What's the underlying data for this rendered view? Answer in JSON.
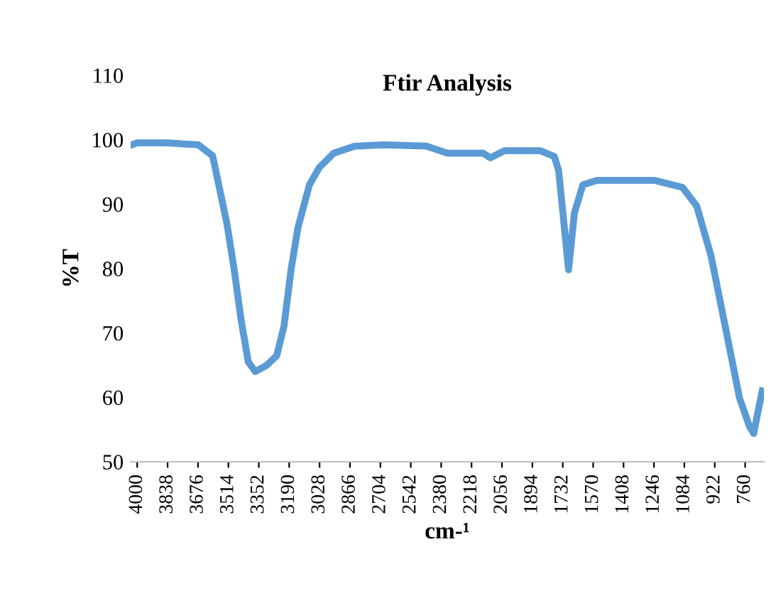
{
  "chart_data": {
    "type": "line",
    "title": "Ftir Analysis",
    "xlabel": "cm-¹",
    "ylabel": "%T",
    "xlim": [
      4035,
      660
    ],
    "xticks": [
      4000,
      3838,
      3676,
      3514,
      3352,
      3190,
      3028,
      2866,
      2704,
      2542,
      2380,
      2218,
      2056,
      1894,
      1732,
      1570,
      1408,
      1246,
      1084,
      922,
      760
    ],
    "ylim": [
      50,
      110
    ],
    "yticks": [
      50,
      60,
      70,
      80,
      90,
      100,
      110
    ],
    "grid": false,
    "marker": "none",
    "line_style": "solid",
    "series": [
      {
        "color": "#5b9bd5",
        "x": [
          4030,
          4000,
          3838,
          3674,
          3598,
          3522,
          3484,
          3446,
          3408,
          3370,
          3309,
          3256,
          3218,
          3180,
          3143,
          3082,
          3029,
          2953,
          2839,
          2687,
          2460,
          2346,
          2156,
          2118,
          2042,
          1853,
          1777,
          1754,
          1731,
          1701,
          1670,
          1625,
          1549,
          1245,
          1094,
          1018,
          942,
          866,
          790,
          737,
          714,
          692,
          669
        ],
        "values": [
          99.2,
          99.5,
          99.5,
          99.2,
          97.5,
          87,
          80,
          72,
          65.5,
          64,
          65,
          66.5,
          71,
          79.8,
          86.4,
          93,
          95.7,
          97.9,
          99,
          99.2,
          99,
          97.9,
          97.9,
          97.2,
          98.3,
          98.3,
          97.4,
          95.2,
          88.6,
          79.8,
          88.6,
          93,
          93.7,
          93.7,
          92.6,
          89.7,
          82,
          71,
          59.9,
          55.5,
          54.4,
          57.7,
          61
        ]
      }
    ]
  }
}
